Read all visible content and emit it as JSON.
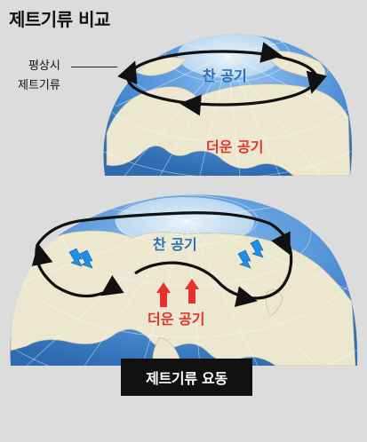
{
  "title": "제트기류 비교",
  "callout": {
    "line1": "평상시",
    "line2": "제트기류"
  },
  "top_globe": {
    "cold_label": "찬 공기",
    "warm_label": "더운 공기"
  },
  "bottom_globe": {
    "cold_label": "찬 공기",
    "warm_label": "더운 공기"
  },
  "caption": "제트기류 요동",
  "colors": {
    "background": "#dcdcdc",
    "ocean": "#4f90d6",
    "land": "#ece7cf",
    "cold_text": "#2a6fb7",
    "warm_text": "#e5322d",
    "caption_bg": "#111111"
  }
}
